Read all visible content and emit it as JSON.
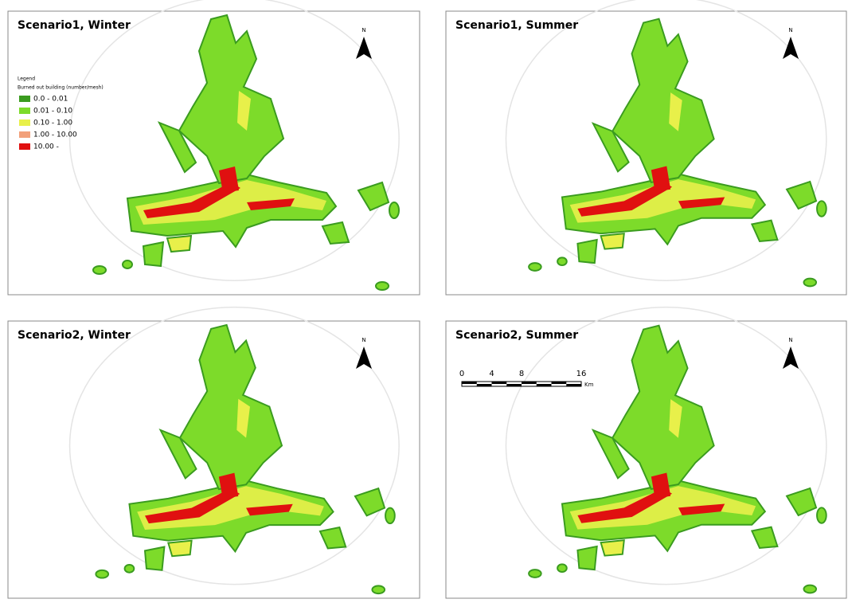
{
  "panels": [
    {
      "title": "Scenario1, Winter",
      "north": "N"
    },
    {
      "title": "Scenario1, Summer",
      "north": "N"
    },
    {
      "title": "Scenario2, Winter",
      "north": "N"
    },
    {
      "title": "Scenario2, Summer",
      "north": "N"
    }
  ],
  "legend": {
    "title": "Legend",
    "subtitle": "Burned out building (number/mesh)",
    "items": [
      {
        "label": "0.0 - 0.01",
        "color": "#3a9b1f"
      },
      {
        "label": "0.01 - 0.10",
        "color": "#7ddb2a"
      },
      {
        "label": "0.10 - 1.00",
        "color": "#e8f04a"
      },
      {
        "label": "1.00 - 10.00",
        "color": "#f2a07a"
      },
      {
        "label": "10.00 -",
        "color": "#e01010"
      }
    ]
  },
  "scale_bar": {
    "labels": [
      "0",
      "4",
      "8",
      "16"
    ],
    "unit": "Km"
  }
}
